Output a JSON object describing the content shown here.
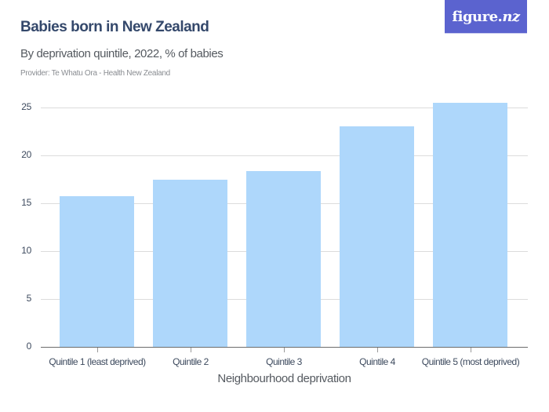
{
  "header": {
    "title": "Babies born in New Zealand",
    "subtitle": "By deprivation quintile, 2022, % of babies",
    "provider": "Provider: Te Whatu Ora - Health New Zealand",
    "logo_main": "figure.",
    "logo_suffix": "nz"
  },
  "colors": {
    "bar": "#aed7fb",
    "title": "#34486b",
    "logo_bg": "#5b63cf"
  },
  "chart_data": {
    "type": "bar",
    "title": "Babies born in New Zealand",
    "subtitle": "By deprivation quintile, 2022, % of babies",
    "xlabel": "Neighbourhood deprivation",
    "ylabel": "",
    "categories": [
      "Quintile 1 (least deprived)",
      "Quintile 2",
      "Quintile 3",
      "Quintile 4",
      "Quintile 5 (most deprived)"
    ],
    "values": [
      15.7,
      17.5,
      18.4,
      23.0,
      25.5
    ],
    "ylim": [
      0,
      25
    ],
    "yticks": [
      "0",
      "5",
      "10",
      "15",
      "20",
      "25"
    ],
    "grid": true,
    "legend": null
  }
}
